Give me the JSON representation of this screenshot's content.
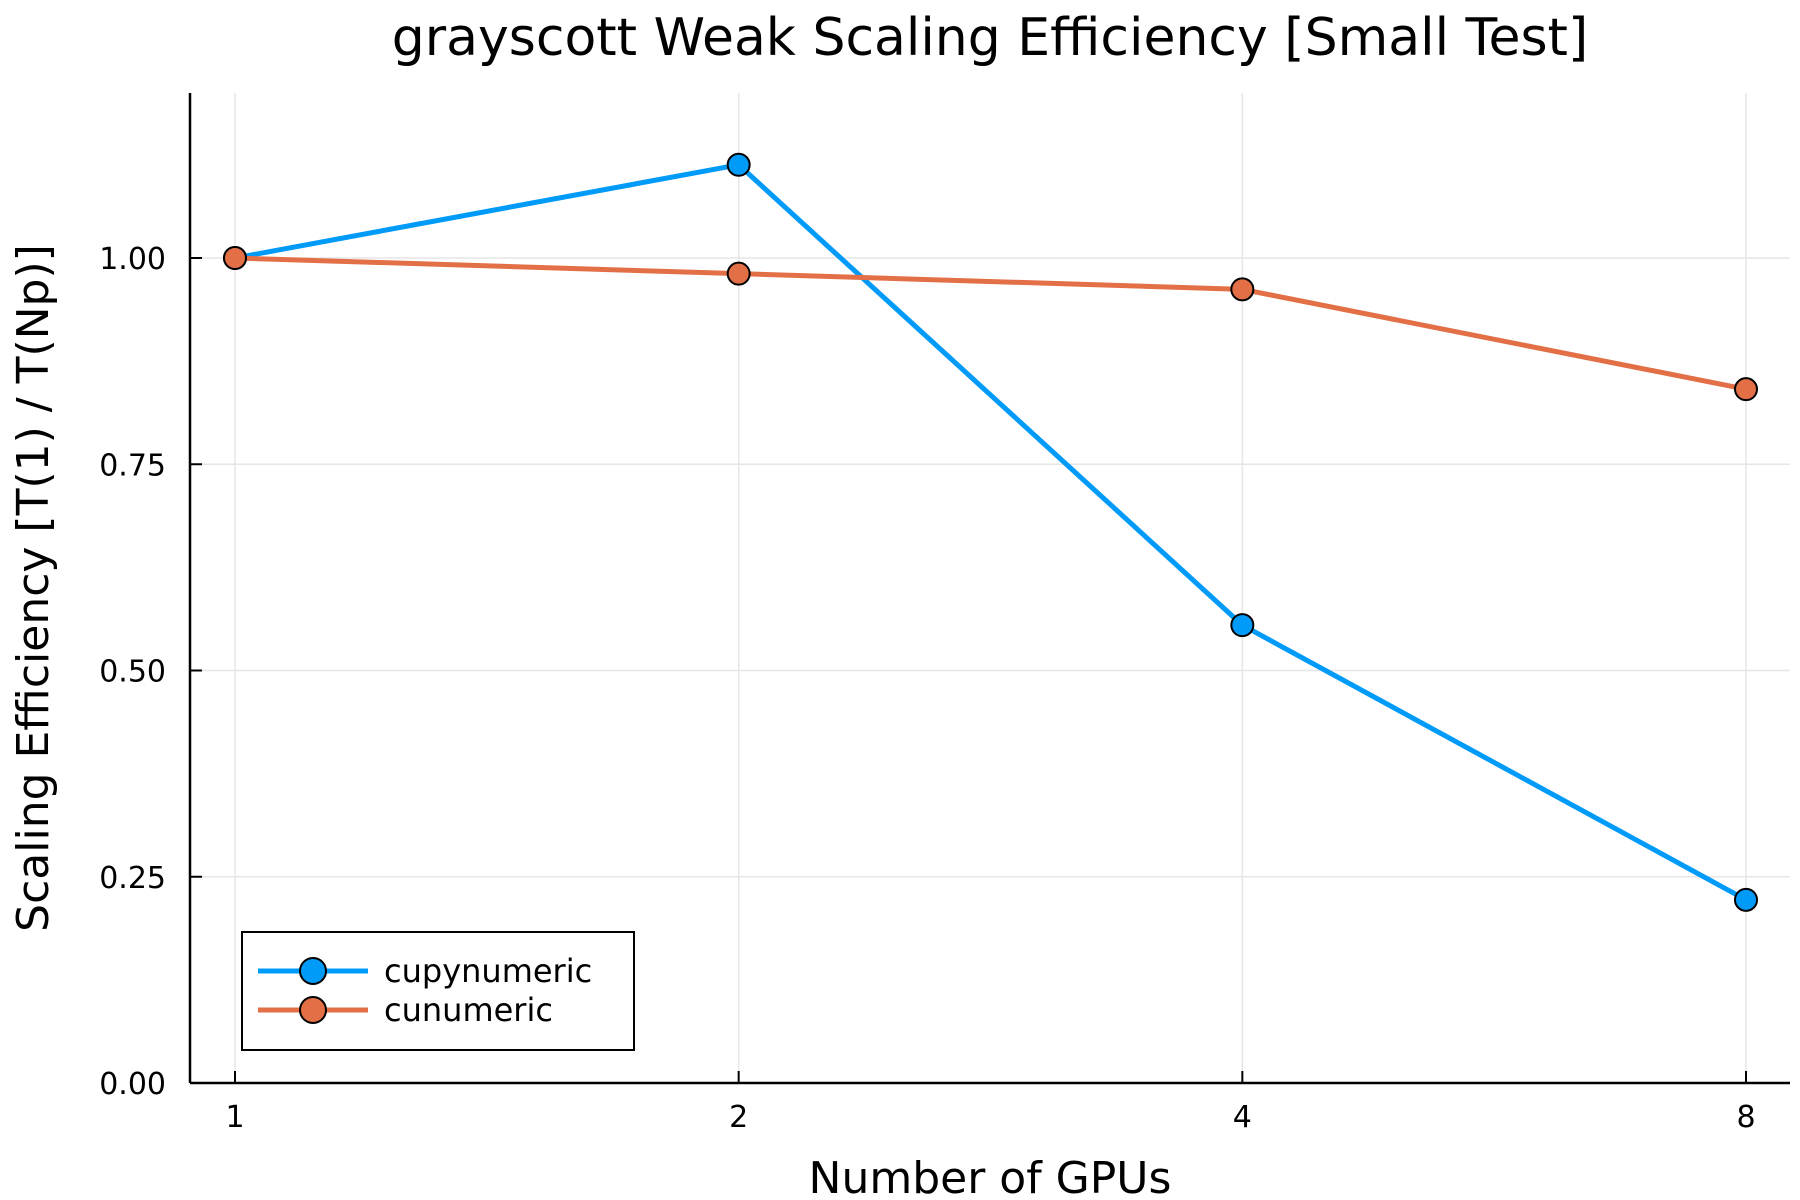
{
  "chart_data": {
    "type": "line",
    "title": "grayscott Weak Scaling Efficiency [Small Test]",
    "xlabel": "Number of GPUs",
    "ylabel": "Scaling Efficiency [T(1) / T(Np)]",
    "x": [
      1,
      2,
      4,
      8
    ],
    "x_scale": "log2",
    "x_tick_labels": [
      "1",
      "2",
      "4",
      "8"
    ],
    "y_ticks": [
      0.0,
      0.25,
      0.5,
      0.75,
      1.0
    ],
    "y_tick_labels": [
      "0.00",
      "0.25",
      "0.50",
      "0.75",
      "1.00"
    ],
    "ylim": [
      0,
      1.2
    ],
    "grid": true,
    "legend_position": "bottom-left",
    "series": [
      {
        "name": "cupynumeric",
        "color": "#009af9",
        "values": [
          1.0,
          1.113,
          0.555,
          0.222
        ]
      },
      {
        "name": "cunumeric",
        "color": "#e26f46",
        "values": [
          1.0,
          0.981,
          0.962,
          0.841
        ]
      }
    ]
  }
}
